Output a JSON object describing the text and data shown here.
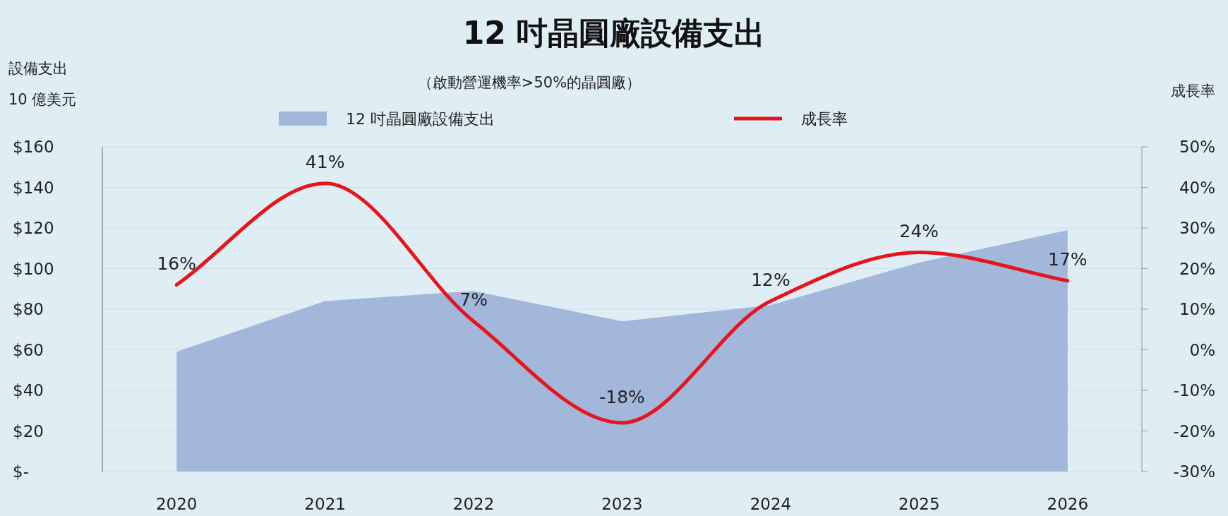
{
  "chart_data": {
    "type": "area",
    "title": "12 吋晶圓廠設備支出",
    "subtitle": "（啟動營運機率>50%的晶圓廠）",
    "ylabel": "設備支出\n10 億美元",
    "y2label": "成長率",
    "categories": [
      "2020",
      "2021",
      "2022",
      "2023",
      "2024",
      "2025",
      "2026"
    ],
    "series": [
      {
        "name": "12 吋晶圓廠設備支出",
        "color": "#a3b7db",
        "values": [
          59,
          84,
          89,
          74,
          82,
          103,
          119
        ]
      },
      {
        "name": "成長率",
        "type": "line",
        "axis": "y2",
        "color": "#e8141b",
        "values": [
          16,
          41,
          7,
          -18,
          12,
          24,
          17
        ],
        "value_labels": [
          "16%",
          "41%",
          "7%",
          "-18%",
          "12%",
          "24%",
          "17%"
        ]
      }
    ],
    "ylim": [
      0,
      160
    ],
    "yticks": [
      {
        "value": 0,
        "label": "$-"
      },
      {
        "value": 20,
        "label": "$20"
      },
      {
        "value": 40,
        "label": "$40"
      },
      {
        "value": 60,
        "label": "$60"
      },
      {
        "value": 80,
        "label": "$80"
      },
      {
        "value": 100,
        "label": "$100"
      },
      {
        "value": 120,
        "label": "$120"
      },
      {
        "value": 140,
        "label": "$140"
      },
      {
        "value": 160,
        "label": "$160"
      }
    ],
    "y2lim": [
      -30,
      50
    ],
    "y2ticks": [
      {
        "value": -30,
        "label": "-30%"
      },
      {
        "value": -20,
        "label": "-20%"
      },
      {
        "value": -10,
        "label": "-10%"
      },
      {
        "value": 0,
        "label": "0%"
      },
      {
        "value": 10,
        "label": "10%"
      },
      {
        "value": 20,
        "label": "20%"
      },
      {
        "value": 30,
        "label": "30%"
      },
      {
        "value": 40,
        "label": "40%"
      },
      {
        "value": 50,
        "label": "50%"
      }
    ],
    "grid": "y",
    "legend": "top",
    "line_style": "solid",
    "marker": "none"
  }
}
